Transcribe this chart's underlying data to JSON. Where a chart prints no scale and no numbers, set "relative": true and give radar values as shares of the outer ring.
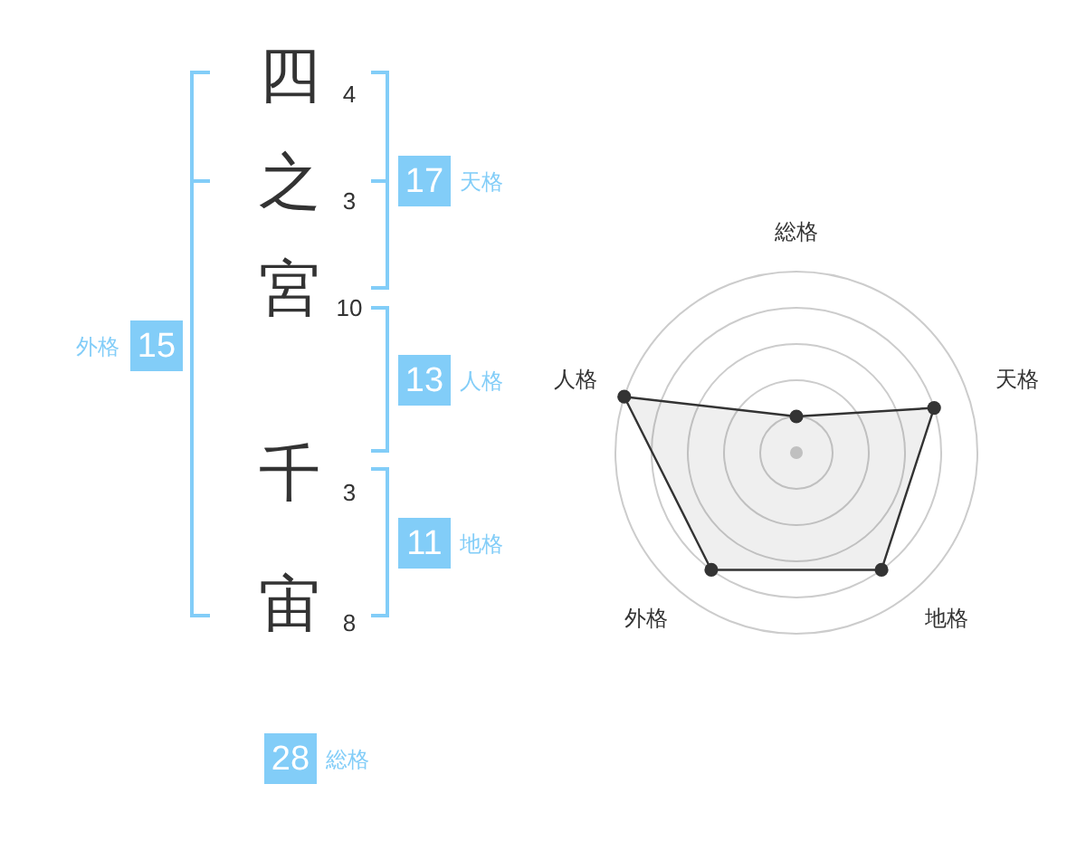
{
  "chart_data": [
    {
      "type": "other",
      "categories": [
        "四",
        "之",
        "宮",
        "千",
        "宙"
      ],
      "values": [
        4,
        3,
        10,
        3,
        8
      ],
      "data_labels": true
    },
    {
      "type": "other",
      "categories": [
        "天格",
        "人格",
        "地格",
        "外格",
        "総格"
      ],
      "values": [
        17,
        13,
        11,
        15,
        28
      ],
      "data_labels": true,
      "color": "#82cdf8"
    },
    {
      "type": "radar",
      "categories": [
        "総格",
        "天格",
        "地格",
        "外格",
        "人格"
      ],
      "relative": true,
      "grid": true,
      "marker": "circle",
      "series": [
        {
          "color": "#333333",
          "values": [
            0.2,
            0.8,
            0.8,
            0.8,
            1.0
          ]
        }
      ]
    }
  ]
}
